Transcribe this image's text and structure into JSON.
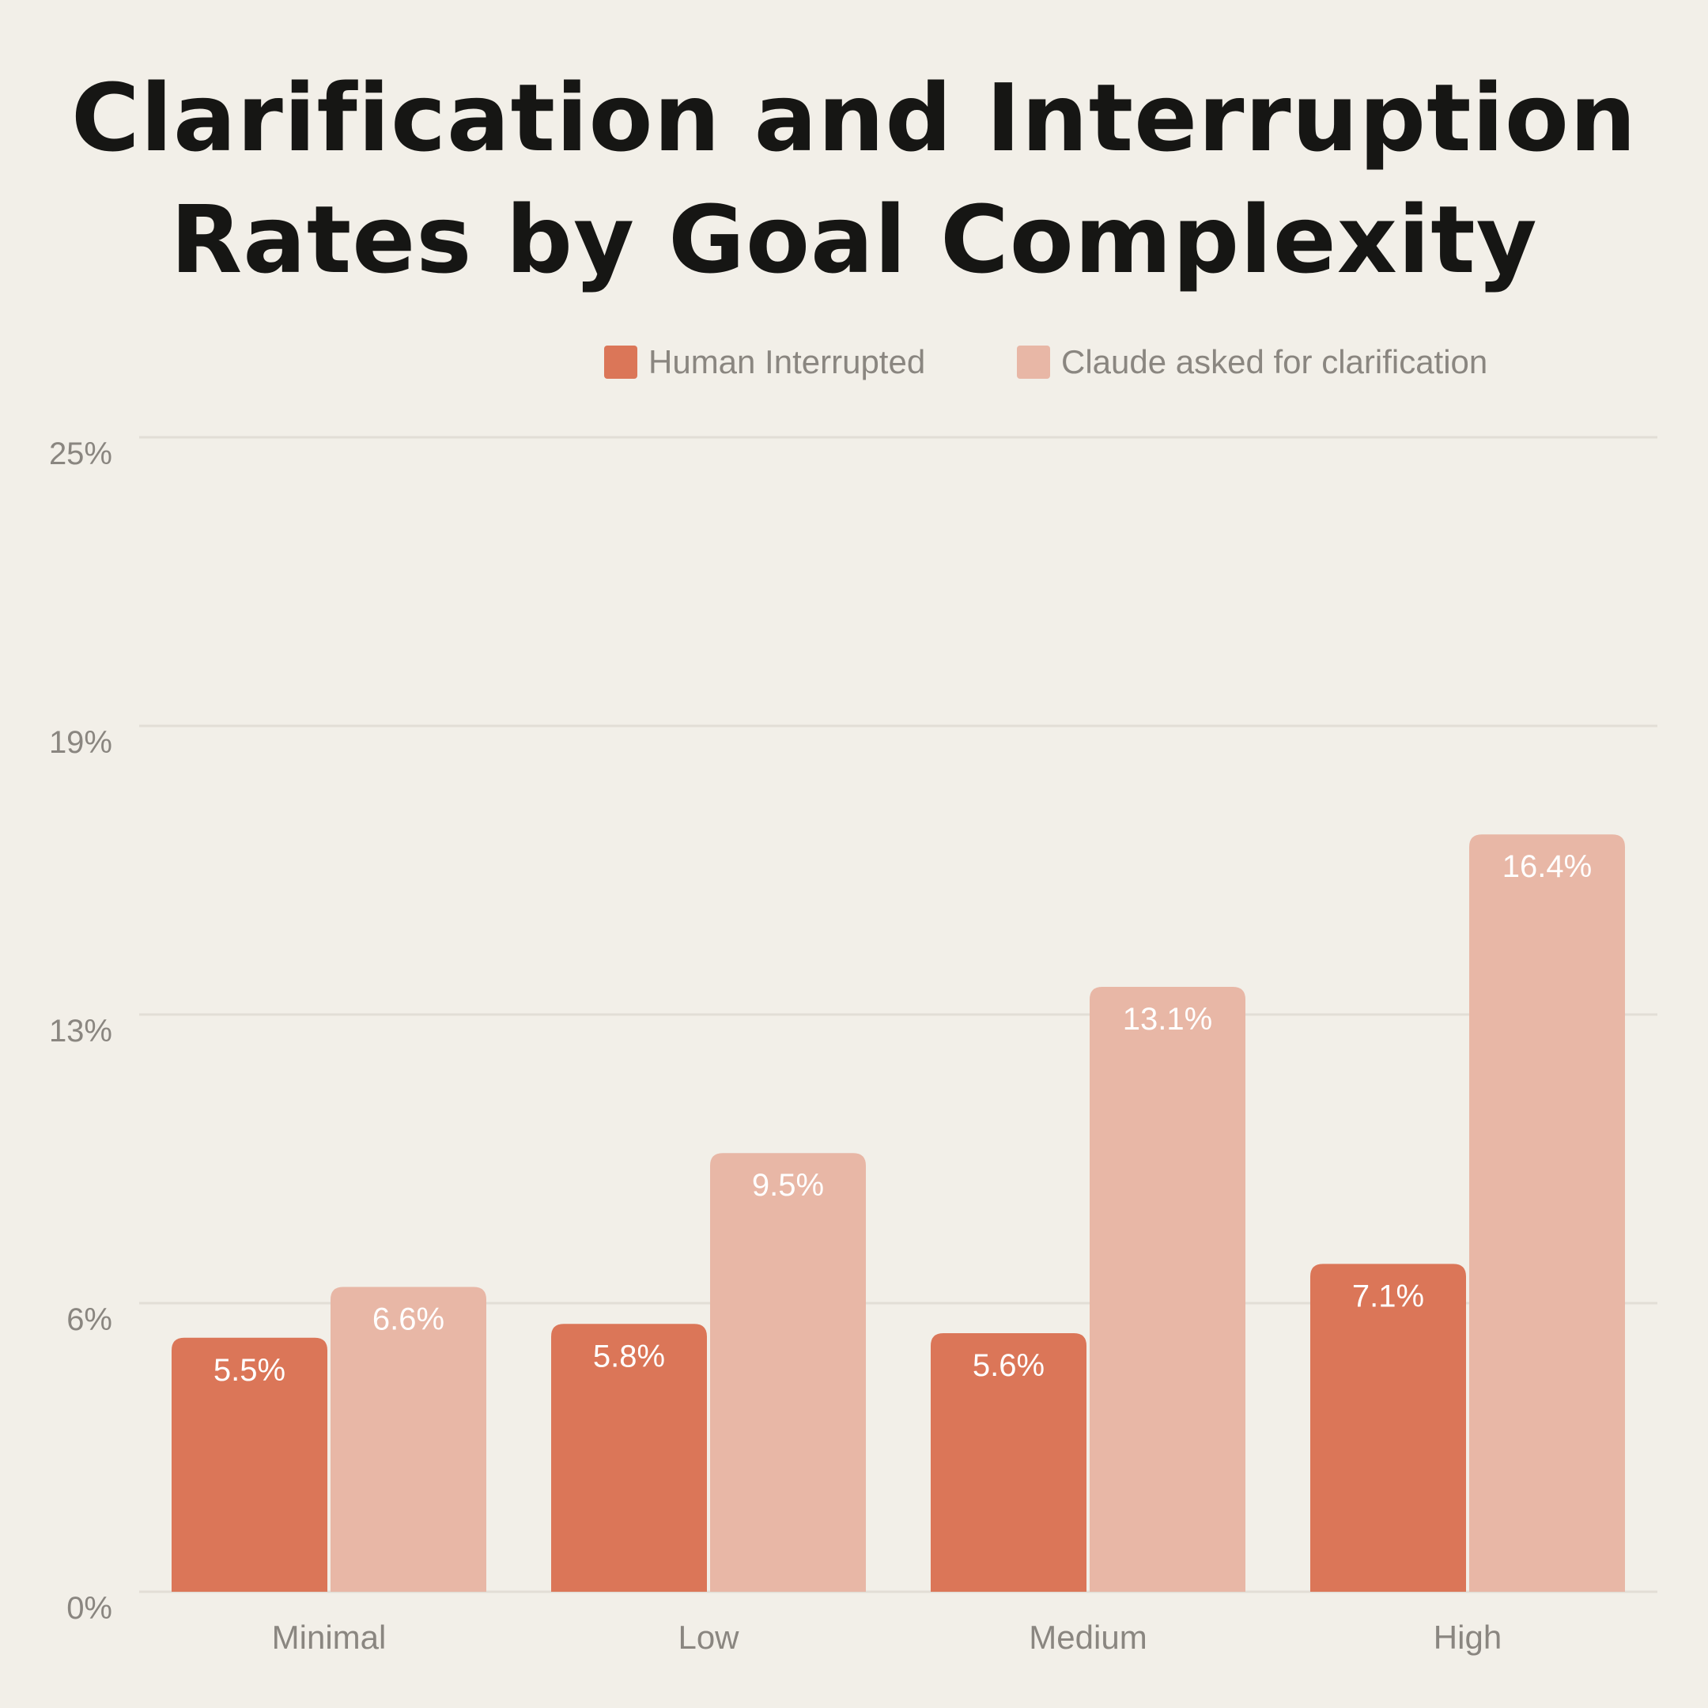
{
  "chart_data": {
    "type": "bar",
    "title": "Clarification and Interruption Rates by Goal Complexity",
    "title_lines": [
      "Clarification and Interruption",
      "Rates by Goal Complexity"
    ],
    "xlabel": "",
    "ylabel": "",
    "categories": [
      "Minimal",
      "Low",
      "Medium",
      "High"
    ],
    "series": [
      {
        "name": "Human Interrupted",
        "values": [
          5.5,
          5.8,
          5.6,
          7.1
        ],
        "labels": [
          "5.5%",
          "5.8%",
          "5.6%",
          "7.1%"
        ],
        "color": "#db7658"
      },
      {
        "name": "Claude asked for clarification",
        "values": [
          6.6,
          9.5,
          13.1,
          16.4
        ],
        "labels": [
          "6.6%",
          "9.5%",
          "13.1%",
          "16.4%"
        ],
        "color": "#e8b7a6"
      }
    ],
    "yticks": [
      0,
      6.25,
      12.5,
      18.75,
      25
    ],
    "ytick_labels": [
      "0%",
      "6%",
      "13%",
      "19%",
      "25%"
    ],
    "ylim": [
      0,
      25
    ],
    "grid": true,
    "legend_position": "top-right",
    "colors": {
      "background": "#f2efe8",
      "gridline": "#e2ded6",
      "axis_text": "#8a8680",
      "data_label": "#ffffff",
      "title": "#161614"
    }
  }
}
